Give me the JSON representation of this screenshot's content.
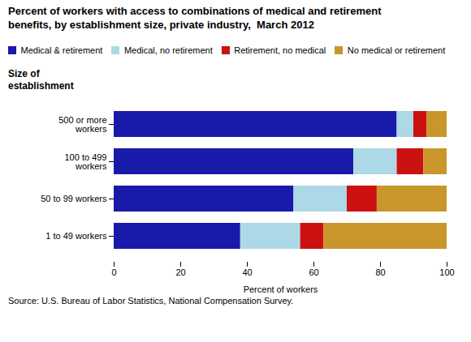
{
  "chart_data": {
    "type": "bar",
    "orientation": "horizontal",
    "stacked": true,
    "title": "Percent of workers with access to combinations of medical and retirement\nbenefits, by establishment size, private industry,  March 2012",
    "xlabel": "Percent of workers",
    "ylabel": "Size of\nestablishment",
    "categories": [
      "1 to 49 workers",
      "50 to 99 workers",
      "100 to 499\nworkers",
      "500 or more\nworkers"
    ],
    "series": [
      {
        "name": "Medical & retirement",
        "color": "#1a1aaa",
        "values": [
          38,
          54,
          72,
          85
        ]
      },
      {
        "name": "Medical, no retirement",
        "color": "#add8e6",
        "values": [
          18,
          16,
          13,
          5
        ]
      },
      {
        "name": "Retirement, no medical",
        "color": "#cc1111",
        "values": [
          7,
          9,
          8,
          4
        ]
      },
      {
        "name": "No medical or retirement",
        "color": "#c8962a",
        "values": [
          37,
          21,
          7,
          6
        ]
      }
    ],
    "xlim": [
      0,
      100
    ],
    "xticks": [
      0,
      20,
      40,
      60,
      80,
      100
    ],
    "legend": "top",
    "grid": false,
    "annotations": [
      "Source: U.S. Bureau of Labor Statistics, National Compensation Survey."
    ]
  }
}
